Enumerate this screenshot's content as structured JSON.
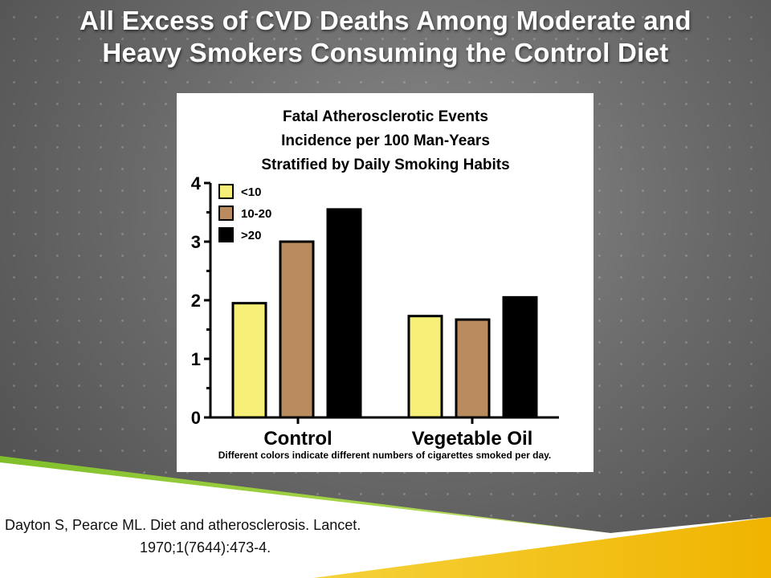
{
  "slide": {
    "title_line1": "All Excess of CVD Deaths Among Moderate and",
    "title_line2": "Heavy Smokers Consuming the Control Diet",
    "citation_line1": "Dayton S, Pearce ML.  Diet and atherosclerosis. Lancet.",
    "citation_line2": "1970;1(7644):473-4."
  },
  "colors": {
    "yellow": "#f7f078",
    "brown": "#b98b5e",
    "black": "#000000",
    "green_band": "#9ccc3c",
    "yellow_band": "#f2c21a"
  },
  "chart_data": {
    "type": "bar",
    "title_lines": [
      "Fatal Atherosclerotic Events",
      "Incidence per 100 Man-Years",
      "Stratified by Daily Smoking Habits"
    ],
    "categories": [
      "Control",
      "Vegetable Oil"
    ],
    "series": [
      {
        "name": "<10",
        "color": "#f7f078",
        "values": [
          1.95,
          1.73
        ]
      },
      {
        "name": "10-20",
        "color": "#b98b5e",
        "values": [
          3.0,
          1.67
        ]
      },
      {
        "name": ">20",
        "color": "#000000",
        "values": [
          3.55,
          2.05
        ]
      }
    ],
    "ylim": [
      0,
      4
    ],
    "yticks": [
      "0",
      "1",
      "2",
      "3",
      "4"
    ],
    "xlabel": "",
    "ylabel": "",
    "legend_position": "top-left",
    "caption": "Different colors indicate different numbers of cigarettes smoked per day."
  }
}
